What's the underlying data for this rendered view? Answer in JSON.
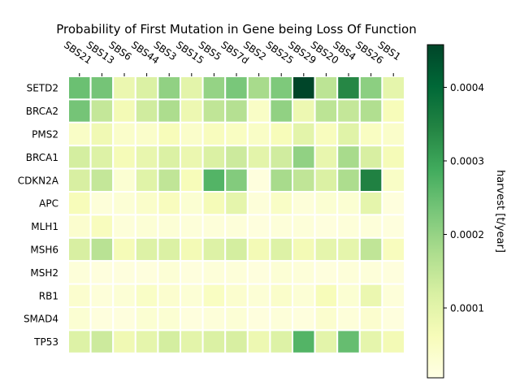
{
  "chart_data": {
    "type": "heatmap",
    "title": "Probability of First Mutation in Gene being Loss Of Function",
    "colorbar_label": "harvest [t/year]",
    "colormap": "YlGn",
    "columns": [
      "SBS21",
      "SBS13",
      "SBS6",
      "SBS44",
      "SBS3",
      "SBS15",
      "SBS5",
      "SBS7d",
      "SBS2",
      "SBS25",
      "SBS29",
      "SBS20",
      "SBS4",
      "SBS26",
      "SBS1"
    ],
    "rows": [
      "SETD2",
      "BRCA2",
      "PMS2",
      "BRCA1",
      "CDKN2A",
      "APC",
      "MLH1",
      "MSH6",
      "MSH2",
      "RB1",
      "SMAD4",
      "TP53"
    ],
    "values": [
      [
        0.000245,
        0.000235,
        8.5e-05,
        0.000115,
        0.000205,
        0.0001,
        0.0002,
        0.00023,
        0.00018,
        0.000225,
        0.00046,
        0.000155,
        0.00034,
        0.00021,
        9.5e-05
      ],
      [
        0.000235,
        0.000145,
        7e-05,
        0.00013,
        0.000175,
        8e-05,
        0.00015,
        0.000165,
        4.5e-05,
        0.000205,
        8e-05,
        0.000155,
        0.000145,
        0.00017,
        6e-05
      ],
      [
        4.5e-05,
        7.5e-05,
        4e-05,
        4e-05,
        6e-05,
        4e-05,
        5.5e-05,
        5e-05,
        4.5e-05,
        6e-05,
        0.0001,
        5.5e-05,
        0.000105,
        5e-05,
        4e-05
      ],
      [
        0.000125,
        0.00011,
        6.5e-05,
        9e-05,
        0.000115,
        8.5e-05,
        0.000115,
        0.000135,
        0.0001,
        0.00013,
        0.000205,
        9e-05,
        0.00018,
        0.00012,
        6.5e-05
      ],
      [
        0.00012,
        0.000145,
        3e-05,
        0.000105,
        0.00015,
        6e-05,
        0.00027,
        0.00022,
        1.5e-05,
        0.00018,
        0.00015,
        0.000115,
        0.000175,
        0.00035,
        4.5e-05
      ],
      [
        6e-05,
        2e-05,
        2.5e-05,
        4e-05,
        5.5e-05,
        3e-05,
        6.5e-05,
        9.5e-05,
        2e-05,
        4.5e-05,
        2e-05,
        3e-05,
        3e-05,
        9.5e-05,
        1.5e-05
      ],
      [
        3.5e-05,
        5.5e-05,
        2e-05,
        2.5e-05,
        2.5e-05,
        2e-05,
        2e-05,
        2e-05,
        1.5e-05,
        2e-05,
        2e-05,
        1.5e-05,
        2e-05,
        2e-05,
        1.5e-05
      ],
      [
        0.00012,
        0.00016,
        6.5e-05,
        0.00011,
        0.000115,
        7e-05,
        0.00011,
        0.000125,
        7e-05,
        0.00011,
        7e-05,
        9.5e-05,
        9.5e-05,
        0.00015,
        5.5e-05
      ],
      [
        2e-05,
        1.5e-05,
        1.5e-05,
        1.5e-05,
        2.5e-05,
        1.5e-05,
        2e-05,
        2e-05,
        1.5e-05,
        2.5e-05,
        2e-05,
        1.5e-05,
        2e-05,
        2e-05,
        1.5e-05
      ],
      [
        3.5e-05,
        2e-05,
        2.5e-05,
        4.5e-05,
        3.5e-05,
        2.5e-05,
        5e-05,
        3.5e-05,
        2.5e-05,
        4e-05,
        2.5e-05,
        6e-05,
        3e-05,
        8.5e-05,
        2e-05
      ],
      [
        3e-05,
        1.5e-05,
        1.5e-05,
        3e-05,
        3e-05,
        1.5e-05,
        2e-05,
        2.5e-05,
        1.5e-05,
        2e-05,
        1.5e-05,
        3.5e-05,
        2e-05,
        3.5e-05,
        1.5e-05
      ],
      [
        0.00011,
        0.000135,
        7.5e-05,
        9.5e-05,
        0.000125,
        0.0001,
        0.000115,
        0.00012,
        8e-05,
        0.00011,
        0.00027,
        0.0001,
        0.00025,
        9.5e-05,
        7e-05
      ]
    ],
    "vmin": 5e-06,
    "vmax": 0.000458,
    "colorbar_ticks": [
      {
        "value": 0.0001,
        "label": "0.0001"
      },
      {
        "value": 0.0002,
        "label": "0.0002"
      },
      {
        "value": 0.0003,
        "label": "0.0003"
      },
      {
        "value": 0.0004,
        "label": "0.0004"
      }
    ]
  }
}
